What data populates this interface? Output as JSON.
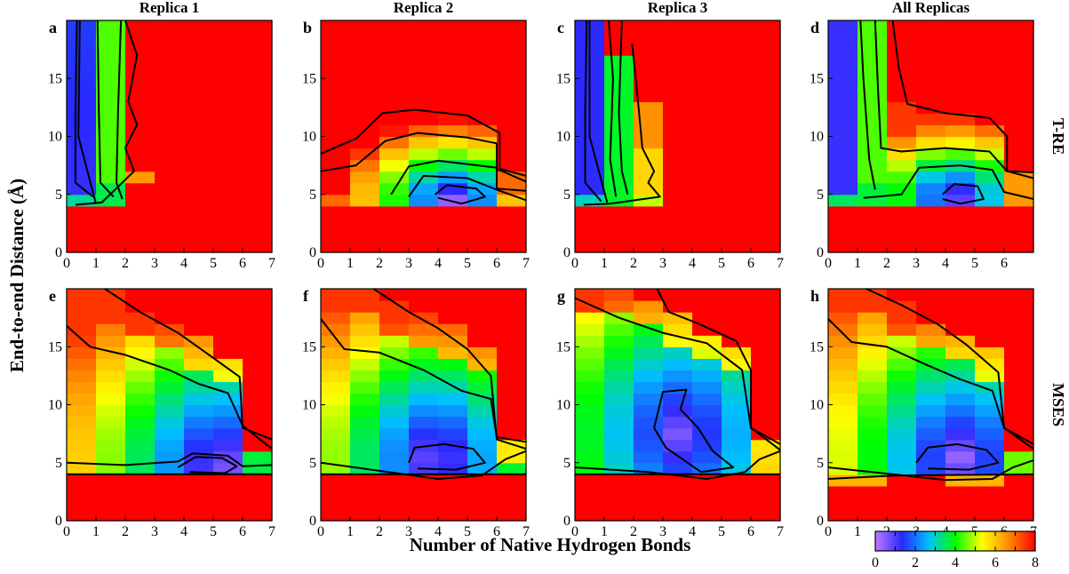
{
  "chart_data": {
    "type": "heatmap",
    "column_titles": [
      "Replica 1",
      "Replica 2",
      "Replica 3",
      "All Replicas"
    ],
    "row_titles": [
      "T-RE",
      "MSES"
    ],
    "xlabel": "Number of Native Hydrogen Bonds",
    "ylabel": "End-to-end Distance (Å)",
    "xlim": [
      0,
      7
    ],
    "ylim": [
      0,
      20
    ],
    "x_ticks": [
      "0",
      "1",
      "2",
      "3",
      "4",
      "5",
      "6",
      "7"
    ],
    "x_ticks_last_panel": [
      "0",
      "1",
      "2",
      "3",
      "4",
      "5",
      "6"
    ],
    "y_ticks": [
      "0",
      "5",
      "10",
      "15"
    ],
    "colorbar": {
      "range": [
        0,
        8
      ],
      "ticks": [
        "0",
        "2",
        "4",
        "6",
        "8"
      ],
      "colors": [
        "#c07aff",
        "#2828ff",
        "#00c0ff",
        "#00ff00",
        "#ffff00",
        "#ff8c00",
        "#ff0000"
      ]
    },
    "panels": [
      {
        "letter": "a",
        "row": "T-RE",
        "column": "Replica 1"
      },
      {
        "letter": "b",
        "row": "T-RE",
        "column": "Replica 2"
      },
      {
        "letter": "c",
        "row": "T-RE",
        "column": "Replica 3"
      },
      {
        "letter": "d",
        "row": "T-RE",
        "column": "All Replicas"
      },
      {
        "letter": "e",
        "row": "MSES",
        "column": "Replica 1"
      },
      {
        "letter": "f",
        "row": "MSES",
        "column": "Replica 2"
      },
      {
        "letter": "g",
        "row": "MSES",
        "column": "Replica 3"
      },
      {
        "letter": "h",
        "row": "MSES",
        "column": "All Replicas"
      }
    ]
  }
}
